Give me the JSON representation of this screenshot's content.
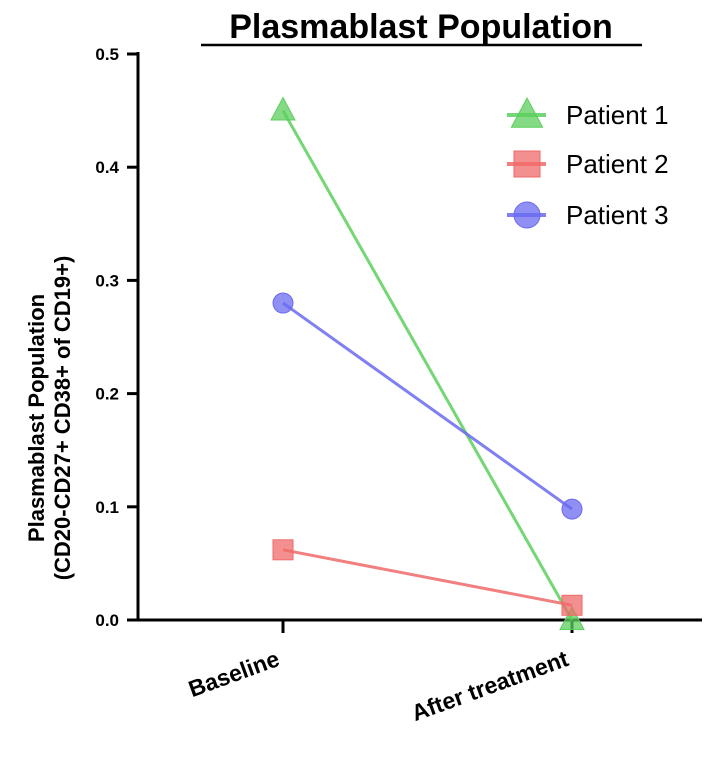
{
  "chart_data": {
    "type": "line",
    "title": "Plasmablast Population",
    "ylabel_line1": "Plasmablast Population",
    "ylabel_line2": "(CD20-CD27+ CD38+ of CD19+)",
    "xlabel": "",
    "categories": [
      "Baseline",
      "After treatment"
    ],
    "ylim": [
      0,
      0.5
    ],
    "yticks": [
      "0.0",
      "0.1",
      "0.2",
      "0.3",
      "0.4",
      "0.5"
    ],
    "legend_position": "top-right",
    "grid": false,
    "series": [
      {
        "name": "Patient 1",
        "marker": "triangle",
        "color": "#5ccf5c",
        "values": [
          0.45,
          0.0
        ]
      },
      {
        "name": "Patient 2",
        "marker": "square",
        "color": "#f06a6a",
        "values": [
          0.062,
          0.013
        ]
      },
      {
        "name": "Patient 3",
        "marker": "circle",
        "color": "#6a6af0",
        "values": [
          0.28,
          0.098
        ]
      }
    ]
  }
}
